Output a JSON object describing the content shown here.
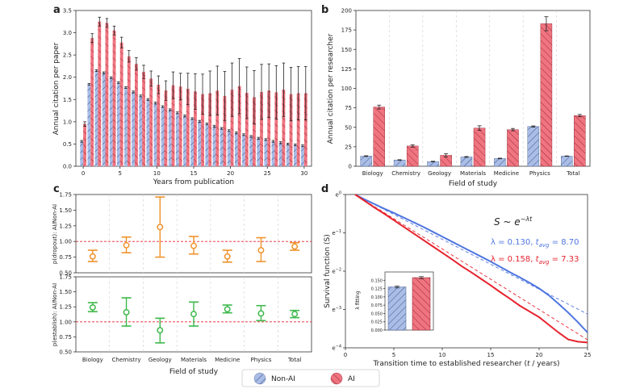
{
  "colors": {
    "nonai": "#a9bde6",
    "nonai_edge": "#4a5f8f",
    "ai": "#f07480",
    "ai_edge": "#8a1f2b",
    "orange": "#f0922b",
    "green": "#3db84a",
    "blue_line": "#4f75e0",
    "red_line": "#e6232e"
  },
  "legend": {
    "nonai": "Non-AI",
    "ai": "AI"
  },
  "chart_data": [
    {
      "id": "a",
      "type": "bar",
      "panel_label": "a",
      "xlabel": "Years from publication",
      "ylabel": "Annual citation per paper",
      "xlim": [
        -1,
        31
      ],
      "ylim": [
        0,
        3.5
      ],
      "xticks": [
        0,
        5,
        10,
        15,
        20,
        25,
        30
      ],
      "yticks": [
        0,
        0.5,
        1.0,
        1.5,
        2.0,
        2.5,
        3.0,
        3.5
      ],
      "ytick_labels": [
        "0.0",
        "0.5",
        "1.0",
        "1.5",
        "2.0",
        "2.5",
        "3.0",
        "3.5"
      ],
      "x": [
        0,
        1,
        2,
        3,
        4,
        5,
        6,
        7,
        8,
        9,
        10,
        11,
        12,
        13,
        14,
        15,
        16,
        17,
        18,
        19,
        20,
        21,
        22,
        23,
        24,
        25,
        26,
        27,
        28,
        29,
        30
      ],
      "series": [
        {
          "name": "Non-AI",
          "values": [
            0.56,
            1.84,
            2.15,
            2.1,
            1.99,
            1.88,
            1.77,
            1.67,
            1.58,
            1.5,
            1.42,
            1.34,
            1.27,
            1.2,
            1.13,
            1.07,
            1.01,
            0.95,
            0.9,
            0.85,
            0.8,
            0.75,
            0.71,
            0.67,
            0.63,
            0.6,
            0.56,
            0.53,
            0.5,
            0.48,
            0.46
          ],
          "err": [
            0.02,
            0.02,
            0.02,
            0.02,
            0.02,
            0.02,
            0.02,
            0.02,
            0.02,
            0.02,
            0.02,
            0.02,
            0.02,
            0.02,
            0.02,
            0.02,
            0.02,
            0.02,
            0.02,
            0.02,
            0.02,
            0.02,
            0.02,
            0.02,
            0.02,
            0.02,
            0.02,
            0.02,
            0.02,
            0.02,
            0.02
          ]
        },
        {
          "name": "AI",
          "values": [
            0.95,
            2.88,
            3.25,
            3.22,
            3.05,
            2.78,
            2.47,
            2.3,
            2.12,
            1.97,
            1.83,
            1.7,
            1.82,
            1.79,
            1.74,
            1.68,
            1.62,
            1.64,
            1.7,
            1.58,
            1.72,
            1.8,
            1.65,
            1.55,
            1.67,
            1.7,
            1.66,
            1.72,
            1.62,
            1.64,
            1.64
          ],
          "err": [
            0.05,
            0.1,
            0.1,
            0.1,
            0.1,
            0.12,
            0.13,
            0.14,
            0.15,
            0.17,
            0.2,
            0.22,
            0.3,
            0.3,
            0.35,
            0.4,
            0.45,
            0.5,
            0.55,
            0.55,
            0.6,
            0.62,
            0.58,
            0.6,
            0.62,
            0.6,
            0.6,
            0.6,
            0.6,
            0.6,
            0.6
          ]
        }
      ]
    },
    {
      "id": "b",
      "type": "bar",
      "panel_label": "b",
      "xlabel": "Field of study",
      "ylabel": "Annual citation per researcher",
      "ylim": [
        0,
        200
      ],
      "yticks": [
        0,
        25,
        50,
        75,
        100,
        125,
        150,
        175,
        200
      ],
      "categories": [
        "Biology",
        "Chemistry",
        "Geology",
        "Materials",
        "Medicine",
        "Physics",
        "Total"
      ],
      "series": [
        {
          "name": "Non-AI",
          "values": [
            13,
            8,
            6,
            12,
            10,
            51,
            13
          ],
          "err": [
            0.5,
            0.4,
            0.4,
            0.5,
            0.4,
            0.8,
            0.3
          ]
        },
        {
          "name": "AI",
          "values": [
            76,
            26,
            14,
            49,
            47,
            183,
            65
          ],
          "err": [
            2.5,
            1.5,
            2.0,
            3.0,
            1.5,
            9.0,
            1.5
          ]
        }
      ]
    },
    {
      "id": "c_top",
      "type": "scatter",
      "panel_label": "c",
      "ylabel": "p(dropout): AI/Non-AI",
      "ylim": [
        0.5,
        1.75
      ],
      "yticks": [
        0.5,
        0.75,
        1.0,
        1.25,
        1.5,
        1.75
      ],
      "ytick_labels": [
        "0.50",
        "0.75",
        "1.00",
        "1.25",
        "1.50",
        "1.75"
      ],
      "reference_line": 1.0,
      "categories": [
        "Biology",
        "Chemistry",
        "Geology",
        "Materials",
        "Medicine",
        "Physics",
        "Total"
      ],
      "values": [
        0.76,
        0.94,
        1.23,
        0.93,
        0.76,
        0.86,
        0.92
      ],
      "lower": [
        0.68,
        0.82,
        0.75,
        0.8,
        0.67,
        0.68,
        0.86
      ],
      "upper": [
        0.86,
        1.07,
        1.71,
        1.08,
        0.86,
        1.06,
        0.98
      ]
    },
    {
      "id": "c_bottom",
      "type": "scatter",
      "xlabel": "Field of study",
      "ylabel": "p(establish): AI/Non-AI",
      "ylim": [
        0.5,
        1.75
      ],
      "yticks": [
        0.5,
        0.75,
        1.0,
        1.25,
        1.5,
        1.75
      ],
      "ytick_labels": [
        "0.50",
        "0.75",
        "1.00",
        "1.25",
        "1.50",
        "1.75"
      ],
      "reference_line": 1.0,
      "categories": [
        "Biology",
        "Chemistry",
        "Geology",
        "Materials",
        "Medicine",
        "Physics",
        "Total"
      ],
      "values": [
        1.24,
        1.16,
        0.86,
        1.13,
        1.21,
        1.14,
        1.13
      ],
      "lower": [
        1.17,
        0.93,
        0.65,
        0.93,
        1.15,
        1.02,
        1.07
      ],
      "upper": [
        1.32,
        1.4,
        1.06,
        1.33,
        1.28,
        1.27,
        1.19
      ]
    },
    {
      "id": "d",
      "type": "line",
      "panel_label": "d",
      "xlabel": "Transition time to established researcher (t / years)",
      "xlabel_parts": [
        "Transition time to established researcher (",
        ") ",
        "t",
        " / years)"
      ],
      "ylabel": "Survival function (S)",
      "xlim": [
        0,
        25
      ],
      "xticks": [
        0,
        5,
        10,
        15,
        20,
        25
      ],
      "ylim_ln": [
        -4,
        0
      ],
      "yticks_ln": [
        0,
        -1,
        -2,
        -3,
        -4
      ],
      "ytick_labels": [
        "e0",
        "e−1",
        "e−2",
        "e−3",
        "e−4"
      ],
      "formula": "S ~ e^(−λt)",
      "annotations": [
        {
          "text": "λ = 0.130, tavg = 8.70",
          "color": "#4f75e0"
        },
        {
          "text": "λ = 0.158, tavg = 7.33",
          "color": "#e6232e"
        }
      ],
      "series": [
        {
          "name": "Non-AI",
          "x": [
            1,
            2,
            3,
            4,
            5,
            6,
            7,
            8,
            9,
            10,
            11,
            12,
            13,
            14,
            15,
            16,
            17,
            18,
            19,
            20,
            21,
            22,
            23,
            24,
            25
          ],
          "ln_s": [
            0,
            -0.13,
            -0.25,
            -0.37,
            -0.48,
            -0.6,
            -0.72,
            -0.84,
            -0.97,
            -1.1,
            -1.23,
            -1.36,
            -1.49,
            -1.62,
            -1.75,
            -1.89,
            -2.03,
            -2.16,
            -2.3,
            -2.45,
            -2.63,
            -2.85,
            -3.08,
            -3.33,
            -3.6
          ]
        },
        {
          "name": "Non-AI fit",
          "x": [
            1,
            25
          ],
          "ln_s": [
            0,
            -3.12
          ]
        },
        {
          "name": "AI",
          "x": [
            1,
            2,
            3,
            4,
            5,
            6,
            7,
            8,
            9,
            10,
            11,
            12,
            13,
            14,
            15,
            16,
            17,
            18,
            19,
            20,
            21,
            22,
            23,
            24,
            25
          ],
          "ln_s": [
            0,
            -0.17,
            -0.34,
            -0.5,
            -0.67,
            -0.84,
            -1.01,
            -1.18,
            -1.35,
            -1.52,
            -1.69,
            -1.87,
            -2.03,
            -2.2,
            -2.37,
            -2.55,
            -2.72,
            -2.9,
            -3.05,
            -3.2,
            -3.4,
            -3.6,
            -3.78,
            -3.84,
            -3.86
          ]
        },
        {
          "name": "AI fit",
          "x": [
            1,
            25
          ],
          "ln_s": [
            0,
            -3.79
          ]
        }
      ],
      "inset": {
        "ylabel": "λ fitting",
        "ylim": [
          0,
          0.175
        ],
        "yticks": [
          0,
          0.025,
          0.05,
          0.075,
          0.1,
          0.125,
          0.15
        ],
        "ytick_labels": [
          "0.000",
          "0.025",
          "0.050",
          "0.075",
          "0.100",
          "0.125",
          "0.150"
        ],
        "categories": [
          "Non-AI",
          "AI"
        ],
        "values": [
          0.13,
          0.158
        ],
        "err": [
          0.003,
          0.003
        ]
      }
    }
  ]
}
